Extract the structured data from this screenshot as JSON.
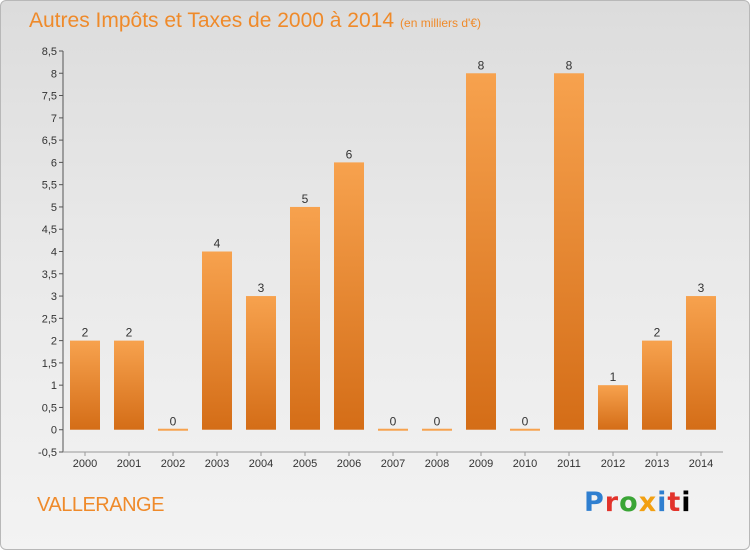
{
  "header": {
    "title": "Autres Impôts et Taxes de 2000 à 2014",
    "subtitle": "(en milliers d'€)"
  },
  "commune": "VALLERANGE",
  "logo": {
    "text": "Proxiti"
  },
  "colors": {
    "bar_top": "#f7a24e",
    "bar_bottom": "#d46d17",
    "accent": "#ef8a2a"
  },
  "chart_data": {
    "type": "bar",
    "title": "Autres Impôts et Taxes de 2000 à 2014",
    "subtitle": "(en milliers d'€)",
    "categories": [
      "2000",
      "2001",
      "2002",
      "2003",
      "2004",
      "2005",
      "2006",
      "2007",
      "2008",
      "2009",
      "2010",
      "2011",
      "2012",
      "2013",
      "2014"
    ],
    "values": [
      2,
      2,
      0,
      4,
      3,
      5,
      6,
      0,
      0,
      8,
      0,
      8,
      1,
      2,
      3
    ],
    "value_labels": [
      "2",
      "2",
      "0",
      "4",
      "3",
      "5",
      "6",
      "0",
      "0",
      "8",
      "0",
      "8",
      "1",
      "2",
      "3"
    ],
    "yticks": [
      "-0,5",
      "0",
      "0,5",
      "1",
      "1,5",
      "2",
      "2,5",
      "3",
      "3,5",
      "4",
      "4,5",
      "5",
      "5,5",
      "6",
      "6,5",
      "7",
      "7,5",
      "8",
      "8,5"
    ],
    "ylim": [
      -0.5,
      8.5
    ],
    "xlabel": "",
    "ylabel": "",
    "grid": false,
    "legend": "none"
  }
}
